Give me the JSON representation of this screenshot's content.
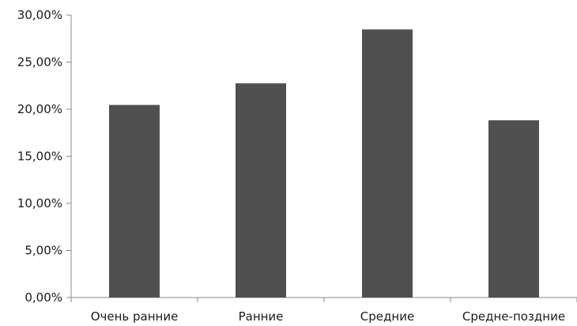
{
  "chart_data": {
    "type": "bar",
    "categories": [
      "Очень ранние",
      "Ранние",
      "Средние",
      "Средне-поздние"
    ],
    "values": [
      0.2045,
      0.2275,
      0.2847,
      0.1882
    ],
    "ylim": [
      0,
      0.3
    ],
    "yticks": [
      0,
      0.05,
      0.1,
      0.15,
      0.2,
      0.25,
      0.3
    ],
    "ytick_labels": [
      "0,00%",
      "5,00%",
      "10,00%",
      "15,00%",
      "20,00%",
      "25,00%",
      "30,00%"
    ],
    "title": "",
    "xlabel": "",
    "ylabel": "",
    "grid": false,
    "legend": "none",
    "bar_color": "#505050",
    "axis_color": "#888888"
  }
}
